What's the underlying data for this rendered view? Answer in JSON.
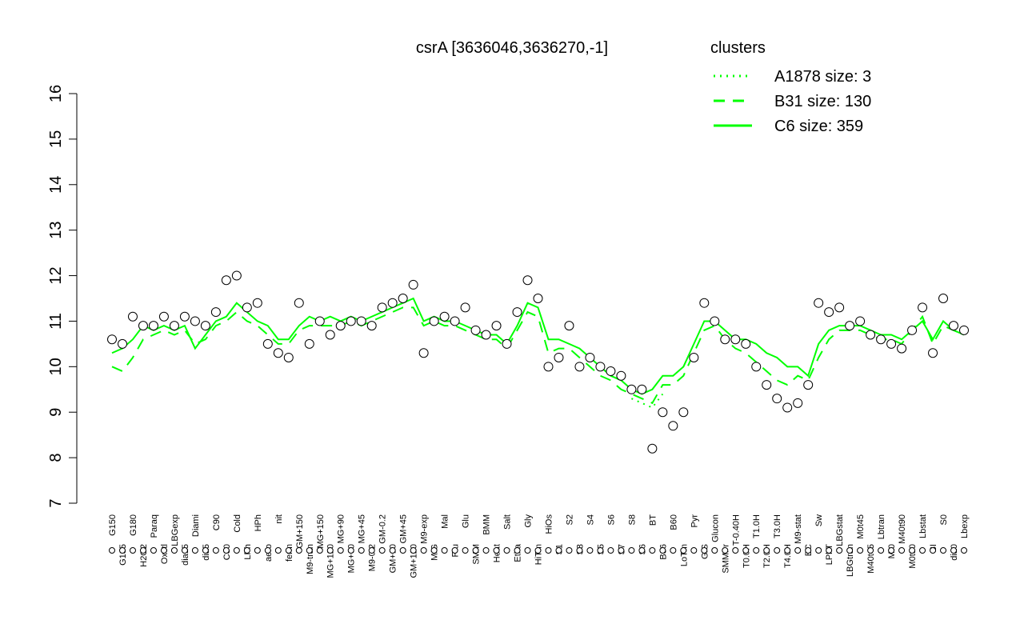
{
  "chart_data": {
    "type": "line",
    "title": "csrA [3636046,3636270,-1]",
    "legend_title": "clusters",
    "legend_color": "#00ff00",
    "point_fill": "#ffffff",
    "ylim": [
      7,
      16
    ],
    "yticks": [
      7,
      8,
      9,
      10,
      11,
      12,
      13,
      14,
      15,
      16
    ],
    "categories": [
      "G150",
      "G135",
      "G180",
      "H2O2",
      "Paraq",
      "Oxctl",
      "LBGexp",
      "dia15",
      "Diami",
      "dia5",
      "C90",
      "C30",
      "Cold",
      "LPh",
      "HPh",
      "aero",
      "nit",
      "ferm",
      "GM+150",
      "M9-tran",
      "MG+150",
      "MG+120",
      "MG+90",
      "MG+60",
      "MG+45",
      "M9-0.2",
      "GM-0.2",
      "GM+10",
      "GM+45",
      "GM+120",
      "M9-exp",
      "M/G",
      "Mal",
      "Fru",
      "Glu",
      "SMM",
      "BMM",
      "Heat",
      "Salt",
      "Etha",
      "Gly",
      "HiTm",
      "HiOs",
      "S1",
      "S2",
      "S3",
      "S4",
      "S5",
      "S6",
      "S7",
      "S8",
      "S6",
      "BT",
      "B36",
      "B60",
      "LoTm",
      "Pyr",
      "G/S",
      "Glucon",
      "SMMPr",
      "T-0.40H",
      "T0.0H",
      "T1.0H",
      "T2.0H",
      "T3.0H",
      "T4.0H",
      "M9-stat",
      "BC",
      "Sw",
      "LPhT",
      "LBGstat",
      "LBGtran",
      "M0t45",
      "M40t45",
      "Lbtran",
      "Mt0",
      "M40t90",
      "M0t90",
      "Lbstat",
      "BI",
      "S0",
      "dia0",
      "Lbexp"
    ],
    "values": [
      10.6,
      10.5,
      11.1,
      10.9,
      10.9,
      11.1,
      10.9,
      11.1,
      11.0,
      10.9,
      11.2,
      11.9,
      12.0,
      11.3,
      11.4,
      10.5,
      10.3,
      10.2,
      11.4,
      10.5,
      11.0,
      10.7,
      10.9,
      11.0,
      11.0,
      10.9,
      11.3,
      11.4,
      11.5,
      11.8,
      10.3,
      11.0,
      11.1,
      11.0,
      11.3,
      10.8,
      10.7,
      10.9,
      10.5,
      11.2,
      11.9,
      11.5,
      10.0,
      10.2,
      10.9,
      10.0,
      10.2,
      10.0,
      9.9,
      9.8,
      9.5,
      9.5,
      8.2,
      9.0,
      8.7,
      9.0,
      10.2,
      11.4,
      11.0,
      10.6,
      10.6,
      10.5,
      10.0,
      9.6,
      9.3,
      9.1,
      9.2,
      9.6,
      11.4,
      11.2,
      11.3,
      10.9,
      11.0,
      10.7,
      10.6,
      10.5,
      10.4,
      10.8,
      11.3,
      10.3,
      11.5,
      10.9,
      10.8
    ],
    "series": [
      {
        "name": "A1878 size: 3",
        "color": "#00ff00",
        "dash": "2,6",
        "values": [
          null,
          null,
          null,
          null,
          null,
          null,
          null,
          null,
          null,
          null,
          null,
          null,
          null,
          null,
          null,
          null,
          null,
          null,
          null,
          null,
          null,
          null,
          null,
          null,
          null,
          null,
          null,
          null,
          null,
          null,
          null,
          null,
          null,
          null,
          null,
          null,
          null,
          null,
          null,
          null,
          null,
          null,
          null,
          null,
          null,
          null,
          null,
          null,
          null,
          null,
          9.3,
          9.2,
          9.1,
          9.4,
          null,
          null,
          null,
          null,
          null,
          null,
          null,
          null,
          null,
          null,
          null,
          null,
          null,
          null,
          null,
          null,
          null,
          null,
          null,
          null,
          null,
          null,
          null,
          null,
          null,
          null,
          null,
          null,
          null
        ]
      },
      {
        "name": "B31 size: 130",
        "color": "#00ff00",
        "dash": "14,10",
        "values": [
          10.0,
          9.9,
          10.2,
          10.6,
          10.7,
          10.8,
          10.7,
          10.8,
          10.5,
          10.6,
          10.9,
          11.0,
          11.2,
          11.0,
          10.9,
          10.7,
          10.5,
          10.5,
          10.8,
          10.9,
          10.9,
          10.9,
          10.9,
          11.0,
          10.9,
          11.0,
          11.1,
          11.2,
          11.3,
          11.3,
          10.9,
          11.0,
          10.9,
          10.9,
          10.8,
          10.7,
          10.6,
          10.6,
          10.4,
          10.8,
          11.2,
          11.1,
          10.3,
          10.4,
          10.4,
          10.2,
          10.0,
          9.8,
          9.7,
          9.5,
          9.4,
          9.3,
          9.2,
          9.6,
          9.6,
          9.8,
          10.3,
          10.8,
          10.9,
          10.6,
          10.4,
          10.3,
          10.1,
          9.9,
          9.7,
          9.6,
          9.8,
          9.7,
          10.2,
          10.6,
          10.8,
          10.8,
          10.8,
          10.7,
          10.6,
          10.6,
          10.5,
          10.8,
          11.1,
          10.5,
          10.9,
          10.8,
          10.7
        ]
      },
      {
        "name": "C6 size: 359",
        "color": "#00ff00",
        "dash": "",
        "values": [
          10.3,
          10.4,
          10.6,
          10.9,
          10.8,
          10.9,
          10.8,
          10.9,
          10.4,
          10.7,
          11.0,
          11.1,
          11.4,
          11.2,
          11.0,
          10.9,
          10.6,
          10.6,
          10.9,
          11.1,
          11.0,
          11.1,
          11.0,
          11.1,
          11.0,
          11.1,
          11.2,
          11.3,
          11.4,
          11.5,
          11.0,
          11.1,
          11.0,
          11.0,
          10.9,
          10.8,
          10.7,
          10.7,
          10.5,
          10.9,
          11.4,
          11.3,
          10.6,
          10.6,
          10.5,
          10.4,
          10.2,
          10.0,
          9.8,
          9.7,
          9.5,
          9.4,
          9.5,
          9.8,
          9.8,
          10.0,
          10.5,
          11.0,
          11.0,
          10.8,
          10.6,
          10.6,
          10.5,
          10.3,
          10.2,
          10.0,
          10.0,
          9.8,
          10.5,
          10.8,
          10.9,
          10.9,
          10.9,
          10.8,
          10.7,
          10.7,
          10.6,
          10.8,
          11.0,
          10.6,
          11.0,
          10.8,
          10.7
        ]
      }
    ]
  }
}
